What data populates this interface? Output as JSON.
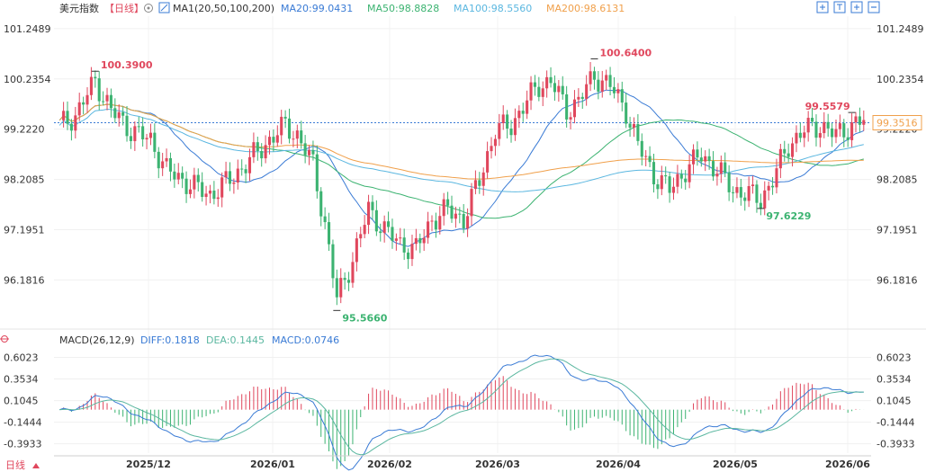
{
  "header": {
    "title": "美元指数",
    "period": "【日线】",
    "ma_group": "MA1(20,50,100,200)",
    "ma_values": [
      {
        "label": "MA20:99.0431",
        "color": "#3a7bd5"
      },
      {
        "label": "MA50:98.8828",
        "color": "#3cb371"
      },
      {
        "label": "MA100:98.5560",
        "color": "#5bb7e0"
      },
      {
        "label": "MA200:98.6131",
        "color": "#f0a04b"
      }
    ],
    "tool_icons": [
      "expand-icon",
      "shrink-icon",
      "grid-icon",
      "minus-icon"
    ]
  },
  "macd_header": {
    "name": "MACD(26,12,9)",
    "diff": "DIFF:0.1818",
    "dea": "DEA:0.1445",
    "macd": "MACD:0.0746"
  },
  "colors": {
    "up": "#e0475d",
    "down": "#3cb371",
    "ma20": "#3a7bd5",
    "ma50": "#3cb371",
    "ma100": "#5bb7e0",
    "ma200": "#f0a04b",
    "diff": "#3a7bd5",
    "dea": "#5bb7a0",
    "last_price_bg": "#f0a04b"
  },
  "chart_data": {
    "type": "candlestick",
    "price_ticks": [
      "101.2489",
      "100.2354",
      "99.2220",
      "98.2085",
      "97.1951",
      "96.1816"
    ],
    "price_ylim": [
      95.3,
      101.5
    ],
    "macd_ticks": [
      "0.6023",
      "0.3534",
      "0.1045",
      "-0.1444",
      "-0.3933"
    ],
    "macd_ylim": [
      -0.5,
      0.7
    ],
    "x_labels": [
      "2025/12",
      "2026/01",
      "2026/02",
      "2026/03",
      "2026/04",
      "2026/05",
      "2026/06"
    ],
    "last_price": "99.3516",
    "reference_line": 99.3516,
    "annotations": [
      {
        "text": "100.3900",
        "value": 100.39,
        "type": "high"
      },
      {
        "text": "95.5660",
        "value": 95.566,
        "type": "low"
      },
      {
        "text": "100.6400",
        "value": 100.64,
        "type": "high"
      },
      {
        "text": "97.6229",
        "value": 97.6229,
        "type": "low"
      },
      {
        "text": "99.5579",
        "value": 99.5579,
        "type": "high"
      }
    ]
  },
  "footer": {
    "period_label": "日线"
  }
}
